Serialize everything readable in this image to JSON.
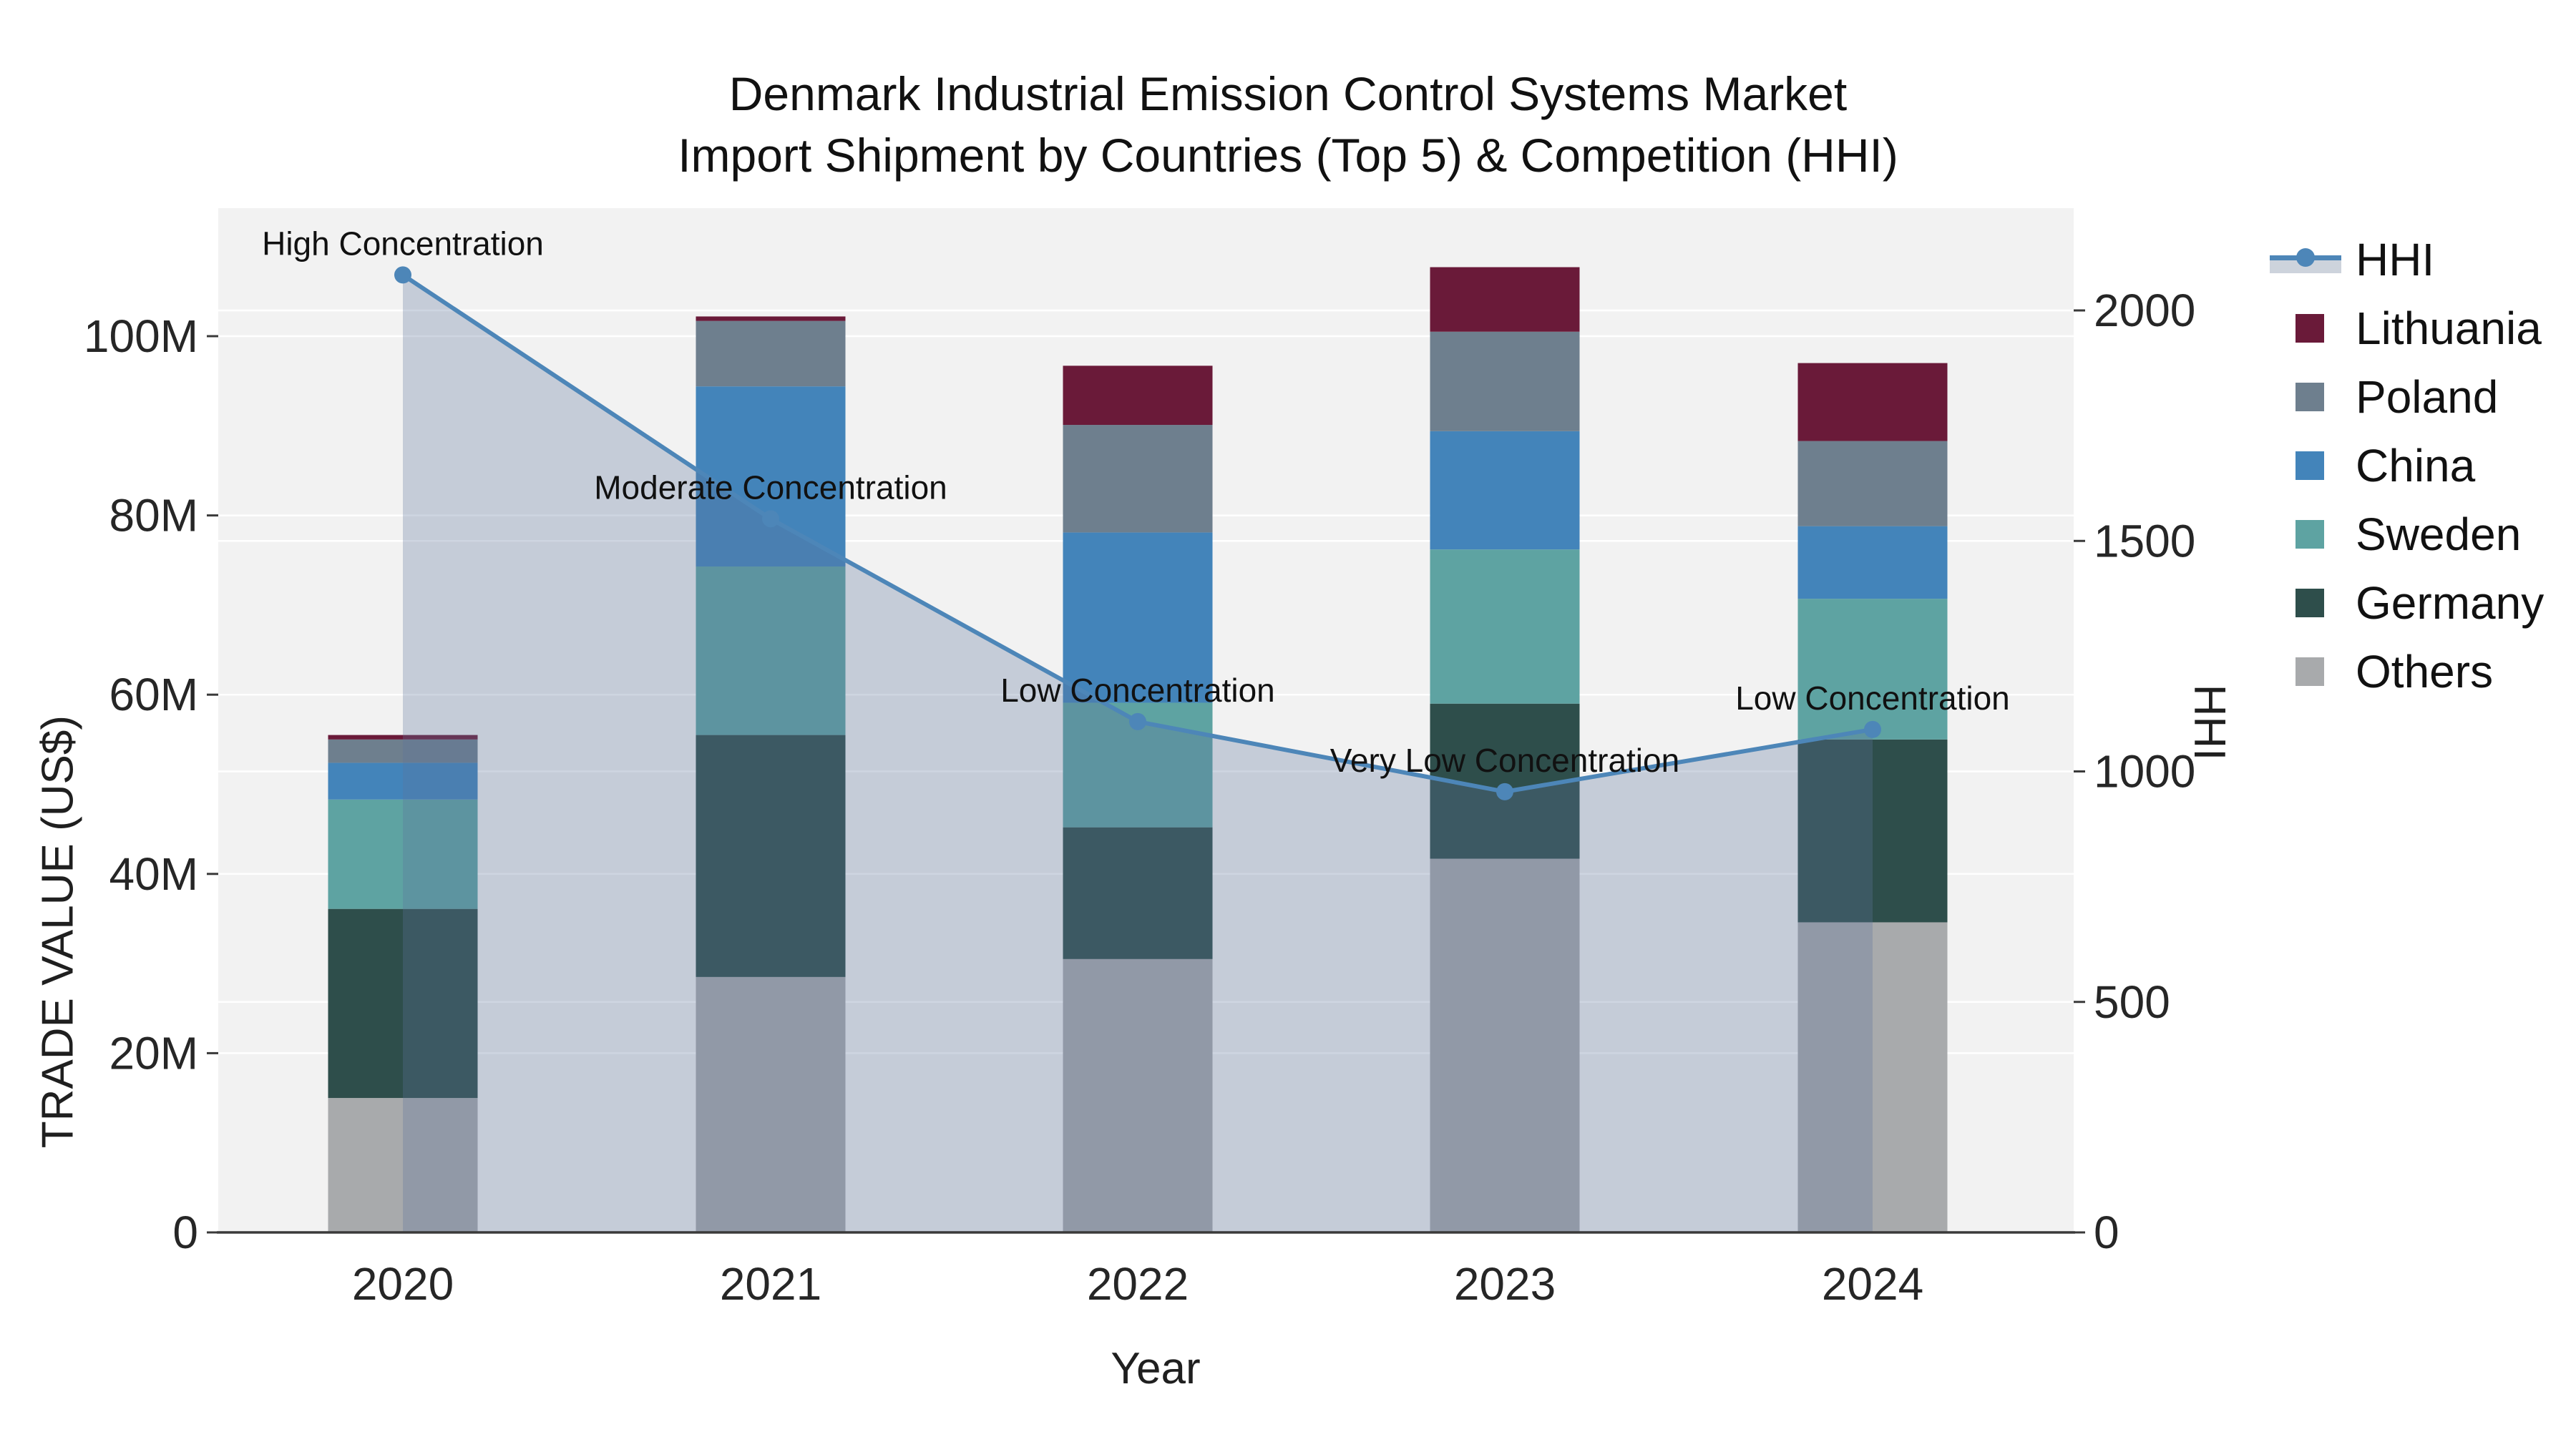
{
  "title": {
    "line1": "Denmark Industrial Emission Control Systems Market",
    "line2": "Import Shipment by Countries (Top 5) & Competition (HHI)"
  },
  "colors": {
    "plot_bg": "#f2f2f2",
    "grid": "#ffffff",
    "axis_line": "#3a3a3a",
    "tick_text": "#262626",
    "annotation_text": "#111111",
    "hhi_line": "#4d86b8",
    "hhi_area": "rgba(92,115,155,0.30)",
    "legend_band": "#cdd3dc",
    "series": {
      "Lithuania": "#6a1a39",
      "Poland": "#6e7f8e",
      "China": "#4384ba",
      "Sweden": "#5ea3a2",
      "Germany": "#2e4e4b",
      "Others": "#a8aaac"
    }
  },
  "legend": {
    "items": [
      {
        "label": "HHI",
        "type": "line"
      },
      {
        "label": "Lithuania",
        "type": "swatch"
      },
      {
        "label": "Poland",
        "type": "swatch"
      },
      {
        "label": "China",
        "type": "swatch"
      },
      {
        "label": "Sweden",
        "type": "swatch"
      },
      {
        "label": "Germany",
        "type": "swatch"
      },
      {
        "label": "Others",
        "type": "swatch"
      }
    ]
  },
  "chart_data": {
    "type": "bar+line",
    "title": "Denmark Industrial Emission Control Systems Market Import Shipment by Countries (Top 5) & Competition (HHI)",
    "categories": [
      "2020",
      "2021",
      "2022",
      "2023",
      "2024"
    ],
    "bar_unit": "US$ millions",
    "stack_order_bottom_to_top": [
      "Others",
      "Germany",
      "Sweden",
      "China",
      "Poland",
      "Lithuania"
    ],
    "series": [
      {
        "name": "Others",
        "values": [
          15.0,
          28.5,
          30.5,
          41.7,
          34.6
        ]
      },
      {
        "name": "Germany",
        "values": [
          21.1,
          27.0,
          14.7,
          17.3,
          20.4
        ]
      },
      {
        "name": "Sweden",
        "values": [
          12.2,
          18.8,
          13.9,
          17.2,
          15.7
        ]
      },
      {
        "name": "China",
        "values": [
          4.1,
          20.1,
          19.0,
          13.2,
          8.1
        ]
      },
      {
        "name": "Poland",
        "values": [
          2.6,
          7.3,
          12.0,
          11.1,
          9.5
        ]
      },
      {
        "name": "Lithuania",
        "values": [
          0.5,
          0.5,
          6.6,
          7.2,
          8.7
        ]
      }
    ],
    "bar_totals": [
      55.5,
      102.2,
      96.7,
      107.7,
      97.0
    ],
    "line_series": {
      "name": "HHI",
      "axis": "right",
      "values": [
        2077,
        1548,
        1108,
        956,
        1091
      ]
    },
    "annotations": [
      {
        "category": "2020",
        "text": "High Concentration"
      },
      {
        "category": "2021",
        "text": "Moderate Concentration"
      },
      {
        "category": "2022",
        "text": "Low Concentration"
      },
      {
        "category": "2023",
        "text": "Very Low Concentration"
      },
      {
        "category": "2024",
        "text": "Low Concentration"
      }
    ],
    "left_axis": {
      "title": "TRADE VALUE (US$)",
      "tick_labels": [
        "0",
        "20M",
        "40M",
        "60M",
        "80M",
        "100M"
      ],
      "tick_values": [
        0,
        20,
        40,
        60,
        80,
        100
      ],
      "range": [
        0,
        114.3
      ]
    },
    "right_axis": {
      "title": "HHI",
      "tick_labels": [
        "0",
        "500",
        "1000",
        "1500",
        "2000"
      ],
      "tick_values": [
        0,
        500,
        1000,
        1500,
        2000
      ],
      "range": [
        0,
        2222
      ]
    },
    "x_axis": {
      "title": "Year"
    },
    "grid": true,
    "legend_position": "right"
  }
}
